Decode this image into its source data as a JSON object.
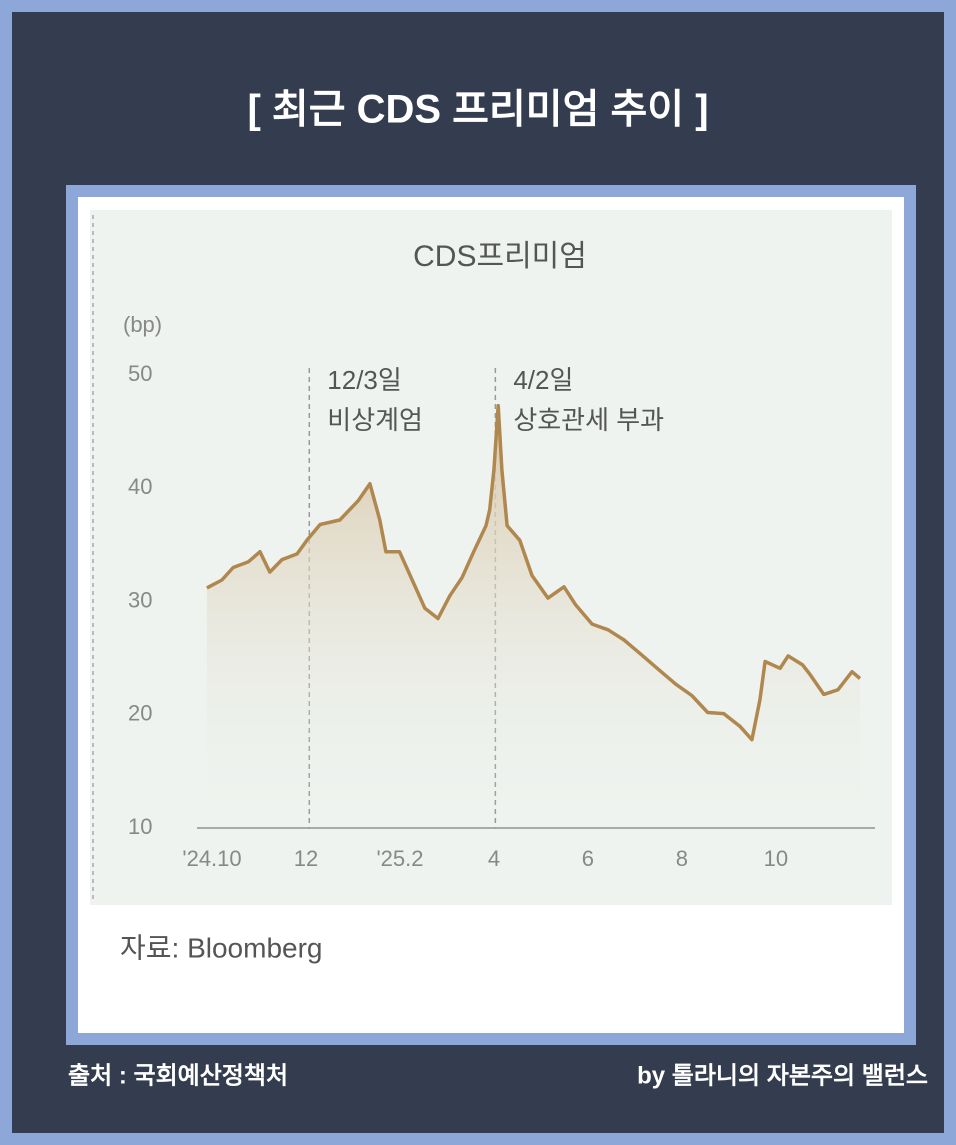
{
  "header": {
    "title": "[ 최근 CDS 프리미엄 추이 ]"
  },
  "chart_data": {
    "type": "area",
    "title": "CDS프리미엄",
    "y_label": "(bp)",
    "source": "자료: Bloomberg",
    "color": "#b0874e",
    "xlim": [
      -0.32,
      14.11
    ],
    "ylim": [
      10,
      50
    ],
    "yticks": [
      10,
      20,
      30,
      40,
      50
    ],
    "xticks": [
      {
        "value": 0,
        "label": "'24.10"
      },
      {
        "value": 2,
        "label": "12"
      },
      {
        "value": 4,
        "label": "'25.2"
      },
      {
        "value": 6,
        "label": "4"
      },
      {
        "value": 8,
        "label": "6"
      },
      {
        "value": 10,
        "label": "8"
      },
      {
        "value": 12,
        "label": "10"
      }
    ],
    "annotations": [
      {
        "x": 2.07,
        "lines": [
          "12/3일",
          "비상계엄"
        ]
      },
      {
        "x": 6.03,
        "lines": [
          "4/2일",
          "상호관세 부과"
        ]
      }
    ],
    "x": [
      -0.11,
      0.21,
      0.45,
      0.77,
      1.02,
      1.23,
      1.49,
      1.81,
      2.02,
      2.3,
      2.72,
      3.11,
      3.36,
      3.57,
      3.7,
      3.99,
      4.26,
      4.53,
      4.81,
      5.06,
      5.32,
      5.57,
      5.83,
      5.91,
      6.0,
      6.09,
      6.17,
      6.28,
      6.55,
      6.81,
      7.15,
      7.49,
      7.74,
      8.09,
      8.43,
      8.77,
      9.11,
      9.53,
      9.87,
      10.21,
      10.55,
      10.89,
      11.23,
      11.49,
      11.66,
      11.77,
      12.09,
      12.26,
      12.57,
      12.72,
      13.02,
      13.32,
      13.62,
      13.79
    ],
    "values": [
      31.2,
      31.9,
      33.0,
      33.5,
      34.4,
      32.6,
      33.7,
      34.2,
      35.4,
      36.8,
      37.2,
      38.9,
      40.4,
      37.2,
      34.4,
      34.4,
      31.9,
      29.4,
      28.5,
      30.5,
      32.1,
      34.4,
      36.7,
      38.1,
      41.6,
      47.3,
      41.6,
      36.7,
      35.4,
      32.3,
      30.3,
      31.3,
      29.7,
      28.0,
      27.5,
      26.6,
      25.4,
      23.9,
      22.7,
      21.7,
      20.2,
      20.1,
      19.0,
      17.8,
      21.3,
      24.7,
      24.1,
      25.2,
      24.4,
      23.6,
      21.8,
      22.2,
      23.8,
      23.2
    ]
  },
  "footer": {
    "source": "출처 : 국회예산정책처",
    "credit": "by 톨라니의 자본주의 밸런스"
  }
}
